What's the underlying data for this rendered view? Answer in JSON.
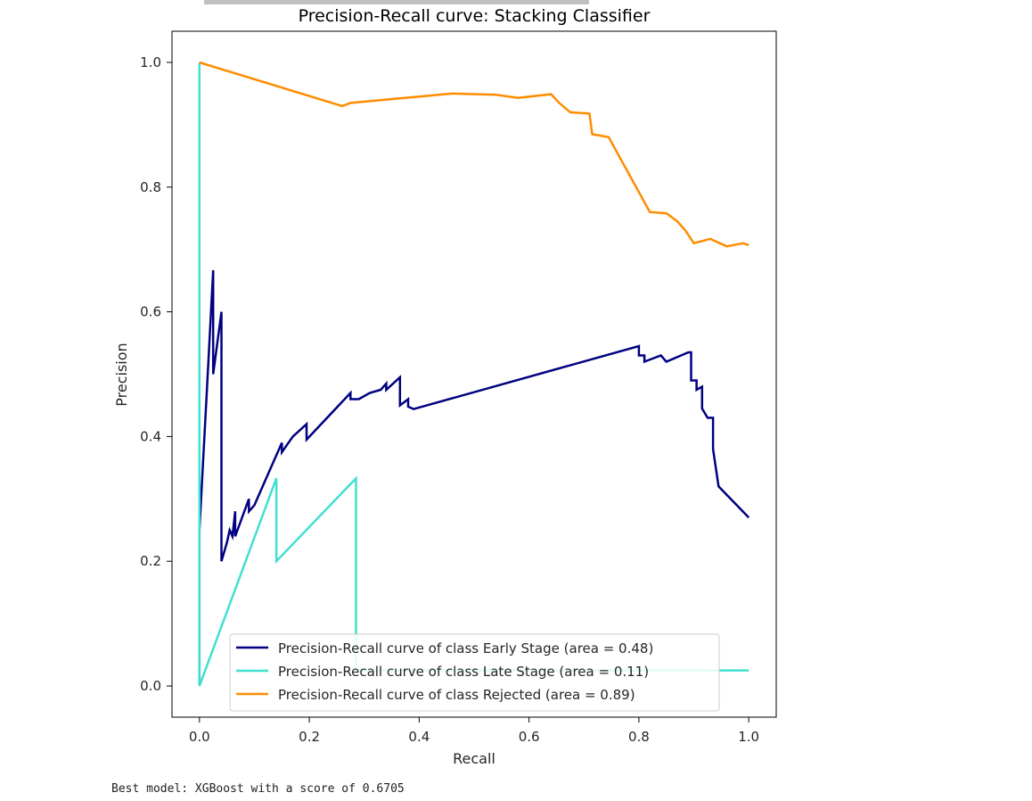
{
  "output": {
    "text": "Best model: XGBoost with a score of 0.6705"
  },
  "chart_data": {
    "type": "line",
    "title": "Precision-Recall curve: Stacking Classifier",
    "xlabel": "Recall",
    "ylabel": "Precision",
    "xlim": [
      -0.05,
      1.05
    ],
    "ylim": [
      -0.05,
      1.05
    ],
    "xticks": [
      0.0,
      0.2,
      0.4,
      0.6,
      0.8,
      1.0
    ],
    "xtick_labels": [
      "0.0",
      "0.2",
      "0.4",
      "0.6",
      "0.8",
      "1.0"
    ],
    "yticks": [
      0.0,
      0.2,
      0.4,
      0.6,
      0.8,
      1.0
    ],
    "ytick_labels": [
      "0.0",
      "0.2",
      "0.4",
      "0.6",
      "0.8",
      "1.0"
    ],
    "grid": false,
    "legend_position": "lower-right",
    "series": [
      {
        "name": "Precision-Recall curve of class Early Stage (area = 0.48)",
        "color": "#000080",
        "points": [
          [
            0.0,
            0.0
          ],
          [
            0.0,
            0.25
          ],
          [
            0.015,
            0.5
          ],
          [
            0.025,
            0.6667
          ],
          [
            0.025,
            0.5
          ],
          [
            0.04,
            0.6
          ],
          [
            0.04,
            0.2
          ],
          [
            0.05,
            0.23
          ],
          [
            0.055,
            0.25
          ],
          [
            0.06,
            0.24
          ],
          [
            0.065,
            0.28
          ],
          [
            0.065,
            0.24
          ],
          [
            0.09,
            0.3
          ],
          [
            0.09,
            0.28
          ],
          [
            0.1,
            0.29
          ],
          [
            0.12,
            0.33
          ],
          [
            0.14,
            0.37
          ],
          [
            0.15,
            0.39
          ],
          [
            0.15,
            0.375
          ],
          [
            0.17,
            0.4
          ],
          [
            0.195,
            0.42
          ],
          [
            0.195,
            0.395
          ],
          [
            0.275,
            0.47
          ],
          [
            0.275,
            0.46
          ],
          [
            0.29,
            0.46
          ],
          [
            0.31,
            0.47
          ],
          [
            0.33,
            0.475
          ],
          [
            0.34,
            0.485
          ],
          [
            0.34,
            0.475
          ],
          [
            0.365,
            0.495
          ],
          [
            0.365,
            0.45
          ],
          [
            0.38,
            0.46
          ],
          [
            0.38,
            0.448
          ],
          [
            0.39,
            0.444
          ],
          [
            0.8,
            0.545
          ],
          [
            0.8,
            0.53
          ],
          [
            0.81,
            0.53
          ],
          [
            0.81,
            0.52
          ],
          [
            0.84,
            0.53
          ],
          [
            0.85,
            0.52
          ],
          [
            0.89,
            0.535
          ],
          [
            0.895,
            0.535
          ],
          [
            0.895,
            0.49
          ],
          [
            0.905,
            0.49
          ],
          [
            0.905,
            0.475
          ],
          [
            0.915,
            0.48
          ],
          [
            0.915,
            0.445
          ],
          [
            0.925,
            0.43
          ],
          [
            0.935,
            0.43
          ],
          [
            0.935,
            0.38
          ],
          [
            0.945,
            0.32
          ],
          [
            1.0,
            0.27
          ]
        ]
      },
      {
        "name": "Precision-Recall curve of class Late Stage (area = 0.11)",
        "color": "#40e0d0",
        "points": [
          [
            0.0,
            1.0
          ],
          [
            0.0,
            0.0
          ],
          [
            0.14,
            0.333
          ],
          [
            0.14,
            0.2
          ],
          [
            0.285,
            0.333
          ],
          [
            0.285,
            0.025
          ],
          [
            1.0,
            0.025
          ]
        ]
      },
      {
        "name": "Precision-Recall curve of class Rejected (area = 0.89)",
        "color": "#ff8c00",
        "points": [
          [
            0.0,
            1.0
          ],
          [
            0.26,
            0.93
          ],
          [
            0.275,
            0.935
          ],
          [
            0.46,
            0.95
          ],
          [
            0.54,
            0.948
          ],
          [
            0.58,
            0.943
          ],
          [
            0.64,
            0.949
          ],
          [
            0.655,
            0.935
          ],
          [
            0.675,
            0.92
          ],
          [
            0.71,
            0.918
          ],
          [
            0.715,
            0.885
          ],
          [
            0.745,
            0.88
          ],
          [
            0.77,
            0.84
          ],
          [
            0.82,
            0.76
          ],
          [
            0.85,
            0.758
          ],
          [
            0.87,
            0.745
          ],
          [
            0.885,
            0.73
          ],
          [
            0.9,
            0.71
          ],
          [
            0.93,
            0.717
          ],
          [
            0.96,
            0.705
          ],
          [
            0.99,
            0.71
          ],
          [
            1.0,
            0.707
          ]
        ]
      }
    ]
  }
}
